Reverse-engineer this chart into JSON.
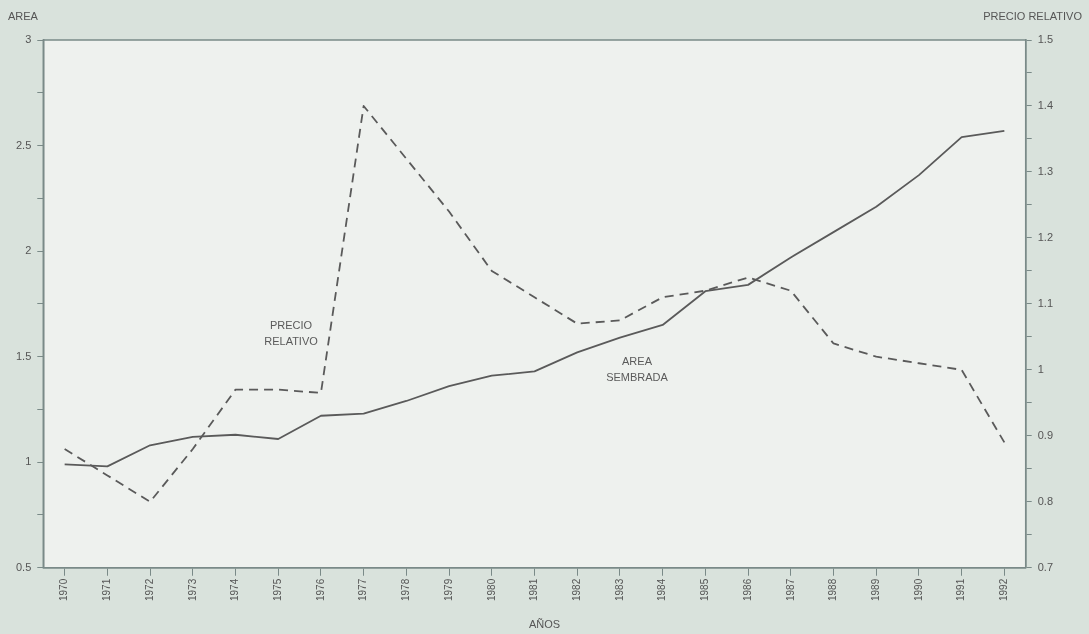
{
  "chart_data": {
    "type": "line",
    "xlabel": "AÑOS",
    "ylabel": "AREA",
    "y2label": "PRECIO RELATIVO",
    "categories": [
      "1970",
      "1971",
      "1972",
      "1973",
      "1974",
      "1975",
      "1976",
      "1977",
      "1978",
      "1979",
      "1980",
      "1981",
      "1982",
      "1983",
      "1984",
      "1985",
      "1986",
      "1987",
      "1988",
      "1989",
      "1990",
      "1991",
      "1992"
    ],
    "series": [
      {
        "name": "AREA SEMBRADA",
        "color": "#5a5a5a",
        "line_style": "solid",
        "values": [
          0.99,
          0.98,
          1.08,
          1.12,
          1.13,
          1.11,
          1.22,
          1.23,
          1.29,
          1.36,
          1.41,
          1.43,
          1.52,
          1.59,
          1.65,
          1.81,
          1.84,
          1.97,
          2.09,
          2.21,
          2.36,
          2.54,
          2.57
        ]
      },
      {
        "name": "PRECIO RELATIVO",
        "color": "#5a5a5a",
        "line_style": "dashed",
        "axis": "y2",
        "values": [
          0.88,
          0.84,
          0.8,
          0.88,
          0.97,
          0.97,
          0.965,
          1.4,
          1.32,
          1.24,
          1.15,
          1.11,
          1.07,
          1.075,
          1.11,
          1.12,
          1.14,
          1.12,
          1.04,
          1.02,
          1.01,
          1.0,
          0.89
        ]
      }
    ],
    "ylim": [
      0.5,
      3
    ],
    "yticks": [
      0.5,
      {
        "value": 0.75,
        "label": null
      },
      1,
      {
        "value": 1.25,
        "label": null
      },
      1.5,
      {
        "value": 1.75,
        "label": null
      },
      2,
      {
        "value": 2.25,
        "label": null
      },
      2.5,
      {
        "value": 2.75,
        "label": null
      },
      3
    ],
    "y2lim": [
      0.7,
      1.5
    ],
    "y2ticks": [
      0.7,
      {
        "value": 0.75,
        "label": null
      },
      0.8,
      {
        "value": 0.85,
        "label": null
      },
      0.9,
      {
        "value": 0.95,
        "label": null
      },
      1,
      {
        "value": 1.05,
        "label": null
      },
      1.1,
      {
        "value": 1.15,
        "label": null
      },
      1.2,
      {
        "value": 1.25,
        "label": null
      },
      1.3,
      {
        "value": 1.35,
        "label": null
      },
      1.4,
      {
        "value": 1.45,
        "label": null
      },
      1.5
    ],
    "grid": false,
    "legend": false,
    "marker": "none"
  }
}
